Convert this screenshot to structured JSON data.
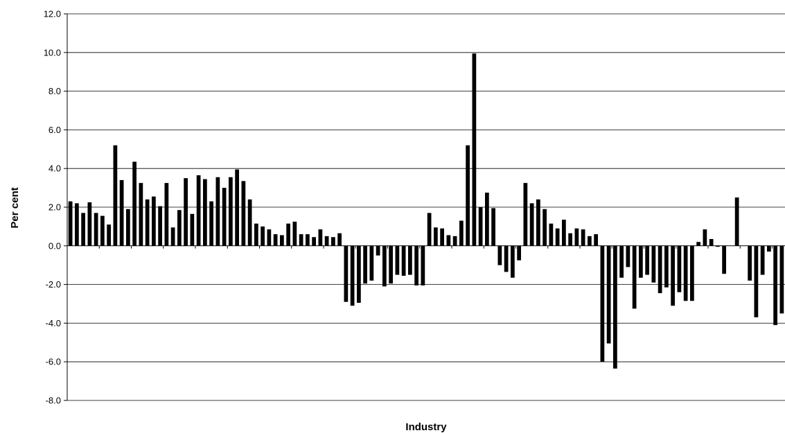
{
  "chart_data": {
    "type": "bar",
    "title": "",
    "xlabel": "Industry",
    "ylabel": "Per cent",
    "ylim": [
      -8,
      12
    ],
    "ytick_step": 2,
    "ytick_labels": [
      "-8.0",
      "-6.0",
      "-4.0",
      "-2.0",
      "0.0",
      "2.0",
      "4.0",
      "6.0",
      "8.0",
      "10.0",
      "12.0"
    ],
    "grid": "horizontal",
    "legend": "none",
    "bar_color": "#000000",
    "values": [
      2.3,
      2.2,
      1.7,
      2.25,
      1.7,
      1.55,
      1.1,
      5.2,
      3.4,
      1.9,
      4.35,
      3.25,
      2.4,
      2.55,
      2.05,
      3.25,
      0.95,
      1.85,
      3.5,
      1.65,
      3.65,
      3.45,
      2.3,
      3.55,
      3.0,
      3.55,
      3.95,
      3.35,
      2.4,
      1.15,
      1.0,
      0.85,
      0.6,
      0.55,
      1.15,
      1.25,
      0.6,
      0.6,
      0.45,
      0.85,
      0.5,
      0.45,
      0.65,
      -2.9,
      -3.1,
      -2.95,
      -1.95,
      -1.8,
      -0.5,
      -2.1,
      -1.95,
      -1.5,
      -1.55,
      -1.5,
      -2.05,
      -2.05,
      1.7,
      0.95,
      0.9,
      0.55,
      0.5,
      1.3,
      5.2,
      9.95,
      2.0,
      2.75,
      1.95,
      -1.0,
      -1.35,
      -1.65,
      -0.75,
      3.25,
      2.2,
      2.4,
      1.9,
      1.15,
      0.9,
      1.35,
      0.65,
      0.9,
      0.85,
      0.5,
      0.6,
      -6.0,
      -5.05,
      -6.35,
      -1.65,
      -1.1,
      -3.25,
      -1.65,
      -1.5,
      -1.9,
      -2.45,
      -2.15,
      -3.1,
      -2.4,
      -2.85,
      -2.85,
      0.2,
      0.85,
      0.35,
      -0.05,
      -1.45,
      0.0,
      2.5,
      0.0,
      -1.8,
      -3.7,
      -1.5,
      -0.3,
      -4.1,
      -3.5
    ]
  }
}
